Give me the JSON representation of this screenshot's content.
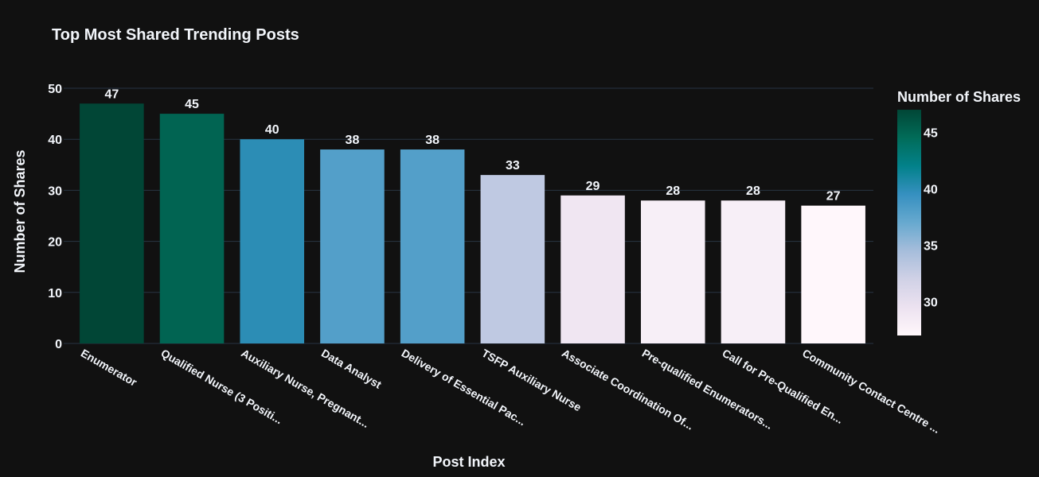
{
  "chart_data": {
    "type": "bar",
    "title": "Top Most Shared Trending Posts",
    "xlabel": "Post Index",
    "ylabel": "Number of Shares",
    "categories": [
      "Enumerator",
      "Qualified Nurse (3 Positi...",
      "Auxiliary Nurse, Pregnant...",
      "Data Analyst",
      "Delivery of Essential Pac...",
      "TSFP Auxiliary Nurse",
      "Associate Coordination Of...",
      "Pre-qualified Enumerators...",
      "Call for Pre-Qualified En...",
      "Community Contact Centre ..."
    ],
    "values": [
      47,
      45,
      40,
      38,
      38,
      33,
      29,
      28,
      28,
      27
    ],
    "ylim": [
      0,
      50
    ],
    "yticks": [
      0,
      10,
      20,
      30,
      40,
      50
    ],
    "grid": true,
    "colorbar": {
      "title": "Number of Shares",
      "range": [
        27,
        47
      ],
      "ticks": [
        30,
        35,
        40,
        45
      ],
      "colorscale": [
        [
          0.0,
          "#fff7fb"
        ],
        [
          0.125,
          "#ece2f0"
        ],
        [
          0.25,
          "#d0d1e6"
        ],
        [
          0.375,
          "#a6bddb"
        ],
        [
          0.5,
          "#67a9cf"
        ],
        [
          0.625,
          "#3690c0"
        ],
        [
          0.75,
          "#02818a"
        ],
        [
          0.875,
          "#016c59"
        ],
        [
          1.0,
          "#014636"
        ]
      ]
    }
  }
}
